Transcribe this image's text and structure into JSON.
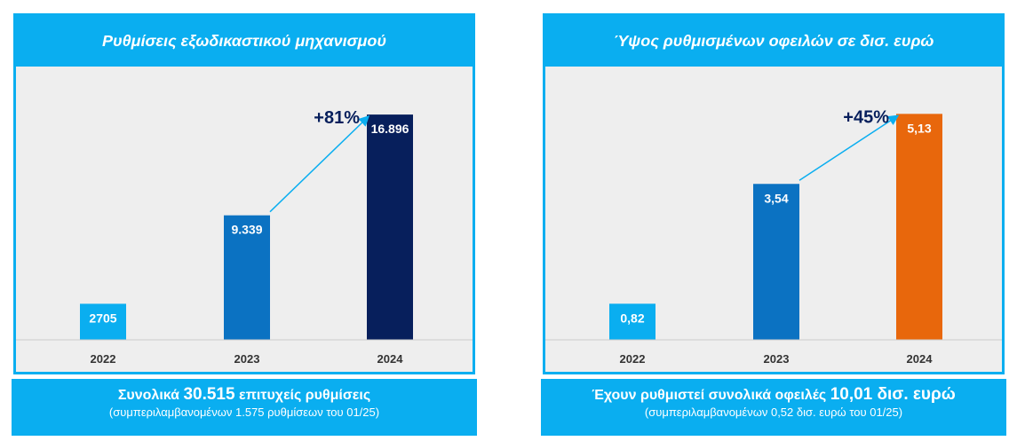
{
  "chart_data": [
    {
      "type": "bar",
      "title": "Ρυθμίσεις εξωδικαστικού μηχανισμού",
      "categories": [
        "2022",
        "2023",
        "2024"
      ],
      "values": [
        2705,
        9339,
        16896
      ],
      "value_labels": [
        "2705",
        "9.339",
        "16.896"
      ],
      "bar_colors": [
        "#0aaef0",
        "#0b72c2",
        "#071f5c"
      ],
      "label_colors": [
        "#ffffff",
        "#ffffff",
        "#ffffff"
      ],
      "growth_label": "+81%",
      "growth_color": "#071f5c",
      "arrow_color": "#0aaef0",
      "ylim": [
        0,
        18500
      ],
      "grid": false,
      "legend": "none"
    },
    {
      "type": "bar",
      "title": "Ύψος ρυθμισμένων οφειλών σε δισ. ευρώ",
      "categories": [
        "2022",
        "2023",
        "2024"
      ],
      "values": [
        0.82,
        3.54,
        5.13
      ],
      "value_labels": [
        "0,82",
        "3,54",
        "5,13"
      ],
      "bar_colors": [
        "#0aaef0",
        "#0b72c2",
        "#e8670c"
      ],
      "label_colors": [
        "#ffffff",
        "#ffffff",
        "#ffffff"
      ],
      "growth_label": "+45%",
      "growth_color": "#071f5c",
      "arrow_color": "#0aaef0",
      "ylim": [
        0,
        5.6
      ],
      "grid": false,
      "legend": "none"
    }
  ],
  "footers": [
    {
      "pre": "Συνολικά ",
      "highlight": "30.515",
      "post": " επιτυχείς ρυθμίσεις",
      "sub": "(συμπεριλαμβανομένων 1.575 ρυθμίσεων του 01/25)"
    },
    {
      "pre": "Έχουν ρυθμιστεί συνολικά οφειλές ",
      "highlight": "10,01 δισ. ευρώ",
      "post": "",
      "sub": "(συμπεριλαμβανομένων 0,52 δισ. ευρώ του 01/25)"
    }
  ],
  "colors": {
    "accent": "#0aaef0",
    "plot_bg": "#eeeeee",
    "axis_text": "#333333",
    "baseline": "#cccccc"
  }
}
